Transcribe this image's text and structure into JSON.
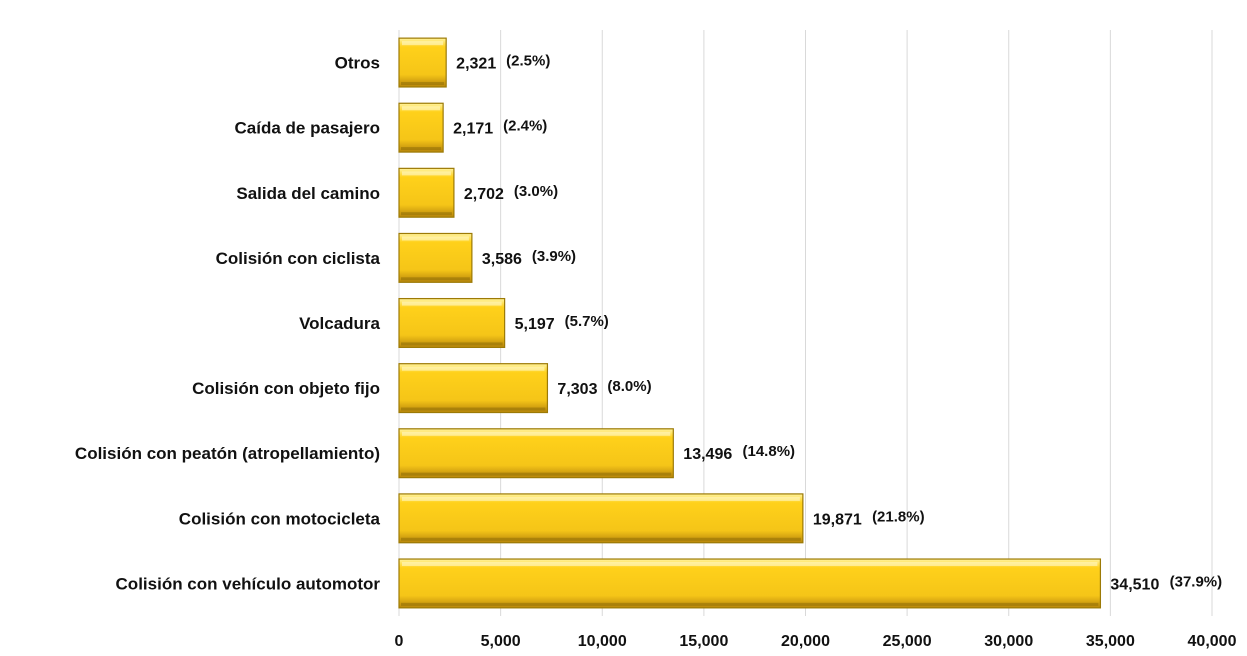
{
  "chart_data": {
    "type": "bar",
    "orientation": "horizontal",
    "categories": [
      "Otros",
      "Caída de pasajero",
      "Salida del camino",
      "Colisión con ciclista",
      "Volcadura",
      "Colisión con objeto fijo",
      "Colisión con peatón (atropellamiento)",
      "Colisión con motocicleta",
      "Colisión con vehículo automotor"
    ],
    "values": [
      2321,
      2171,
      2702,
      3586,
      5197,
      7303,
      13496,
      19871,
      34510
    ],
    "value_labels": [
      "2,321",
      "2,171",
      "2,702",
      "3,586",
      "5,197",
      "7,303",
      "13,496",
      "19,871",
      "34,510"
    ],
    "percent_labels": [
      "(2.5%)",
      "(2.4%)",
      "(3.0%)",
      "(3.9%)",
      "(5.7%)",
      "(8.0%)",
      "(14.8%)",
      "(21.8%)",
      "(37.9%)"
    ],
    "xticks": [
      "0",
      "5,000",
      "10,000",
      "15,000",
      "20,000",
      "25,000",
      "30,000",
      "35,000",
      "40,000"
    ],
    "xlim": [
      0,
      40000
    ],
    "title": "",
    "xlabel": "",
    "ylabel": "",
    "grid": "vertical",
    "bar_color": "#f5c518",
    "bar_edge_color": "#9c7a06",
    "grid_color": "#d9d9d9"
  }
}
